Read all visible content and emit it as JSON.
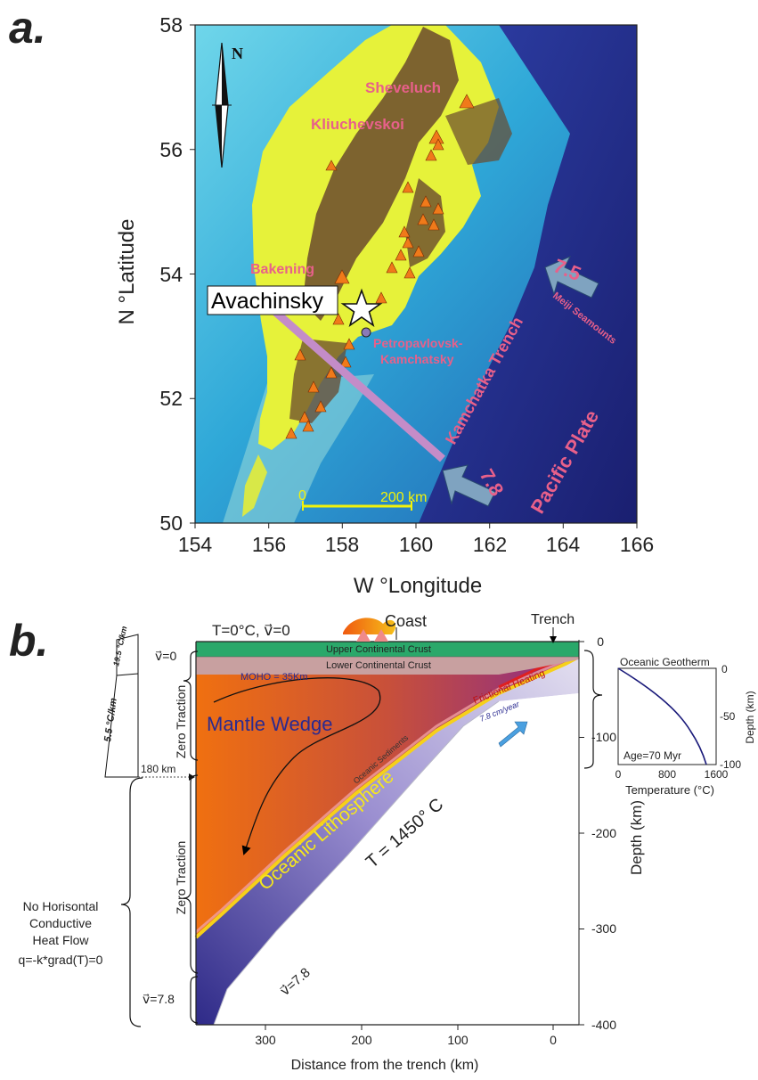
{
  "panel_a": {
    "label": "a.",
    "ylabel": "N °Latitude",
    "xlabel": "W °Longitude",
    "lat_ticks": [
      "50",
      "52",
      "54",
      "56",
      "58"
    ],
    "lon_ticks": [
      "154",
      "156",
      "158",
      "160",
      "162",
      "164",
      "166"
    ],
    "north": "N",
    "volcano_names": [
      "Sheveluch",
      "Kliuchevskoi",
      "Bakening"
    ],
    "avachinsky": "Avachinsky",
    "city_line1": "Petropavlovsk-",
    "city_line2": "Kamchatsky",
    "trench": "Kamchatka Trench",
    "plate": "Pacific Plate",
    "seamounts": "Meiji Seamounts",
    "rate_north": "7.5",
    "rate_south": "7.8",
    "scale_start": "0",
    "scale_end": "200 km",
    "colors": {
      "land": "#e6f23a",
      "mountains": "#6a4a2e",
      "shelf": "#5ad2e0",
      "deep": "#2a2f8a",
      "volcano": "#f07a1a",
      "profile": "#c48cc8"
    }
  },
  "panel_b": {
    "label": "b.",
    "top_bc": "T=0°C, v⃗=0",
    "coast": "Coast",
    "trench": "Trench",
    "upper_crust": "Upper Continental Crust",
    "lower_crust": "Lower Continental Crust",
    "moho": "MOHO = 35Km",
    "frictional": "Frictional Heating",
    "mantle_wedge": "Mantle Wedge",
    "rate": "7.8 cm/year",
    "sediments": "Oceanic Sediments",
    "lithosphere": "Oceanic Lithosphere",
    "temp": "T = 1450° C",
    "v_top": "v⃗=0",
    "v_left": "v⃗=7.8",
    "v_slab": "v⃗=7.8",
    "zero_traction_1": "Zero Traction",
    "zero_traction_2": "Zero Traction",
    "depth_180": "180 km",
    "grad_top": "19.5 °C/km",
    "grad_main": "5.5 °C/km",
    "heat_line1": "No Horisontal",
    "heat_line2": "Conductive",
    "heat_line3": "Heat Flow",
    "heat_line4": "q=-k*grad(T)=0",
    "xlabel": "Distance from the trench (km)",
    "ylabel": "Depth (km)",
    "x_ticks": [
      "300",
      "200",
      "100",
      "0"
    ],
    "y_ticks": [
      "0",
      "-100",
      "-200",
      "-300",
      "-400"
    ],
    "inset": {
      "title": "Oceanic Geotherm",
      "age": "Age=70 Myr",
      "xlabel": "Temperature (°C)",
      "ylabel": "Depth (km)",
      "x_ticks": [
        "0",
        "800",
        "1600"
      ],
      "y_ticks": [
        "0",
        "-50",
        "-100"
      ]
    }
  }
}
